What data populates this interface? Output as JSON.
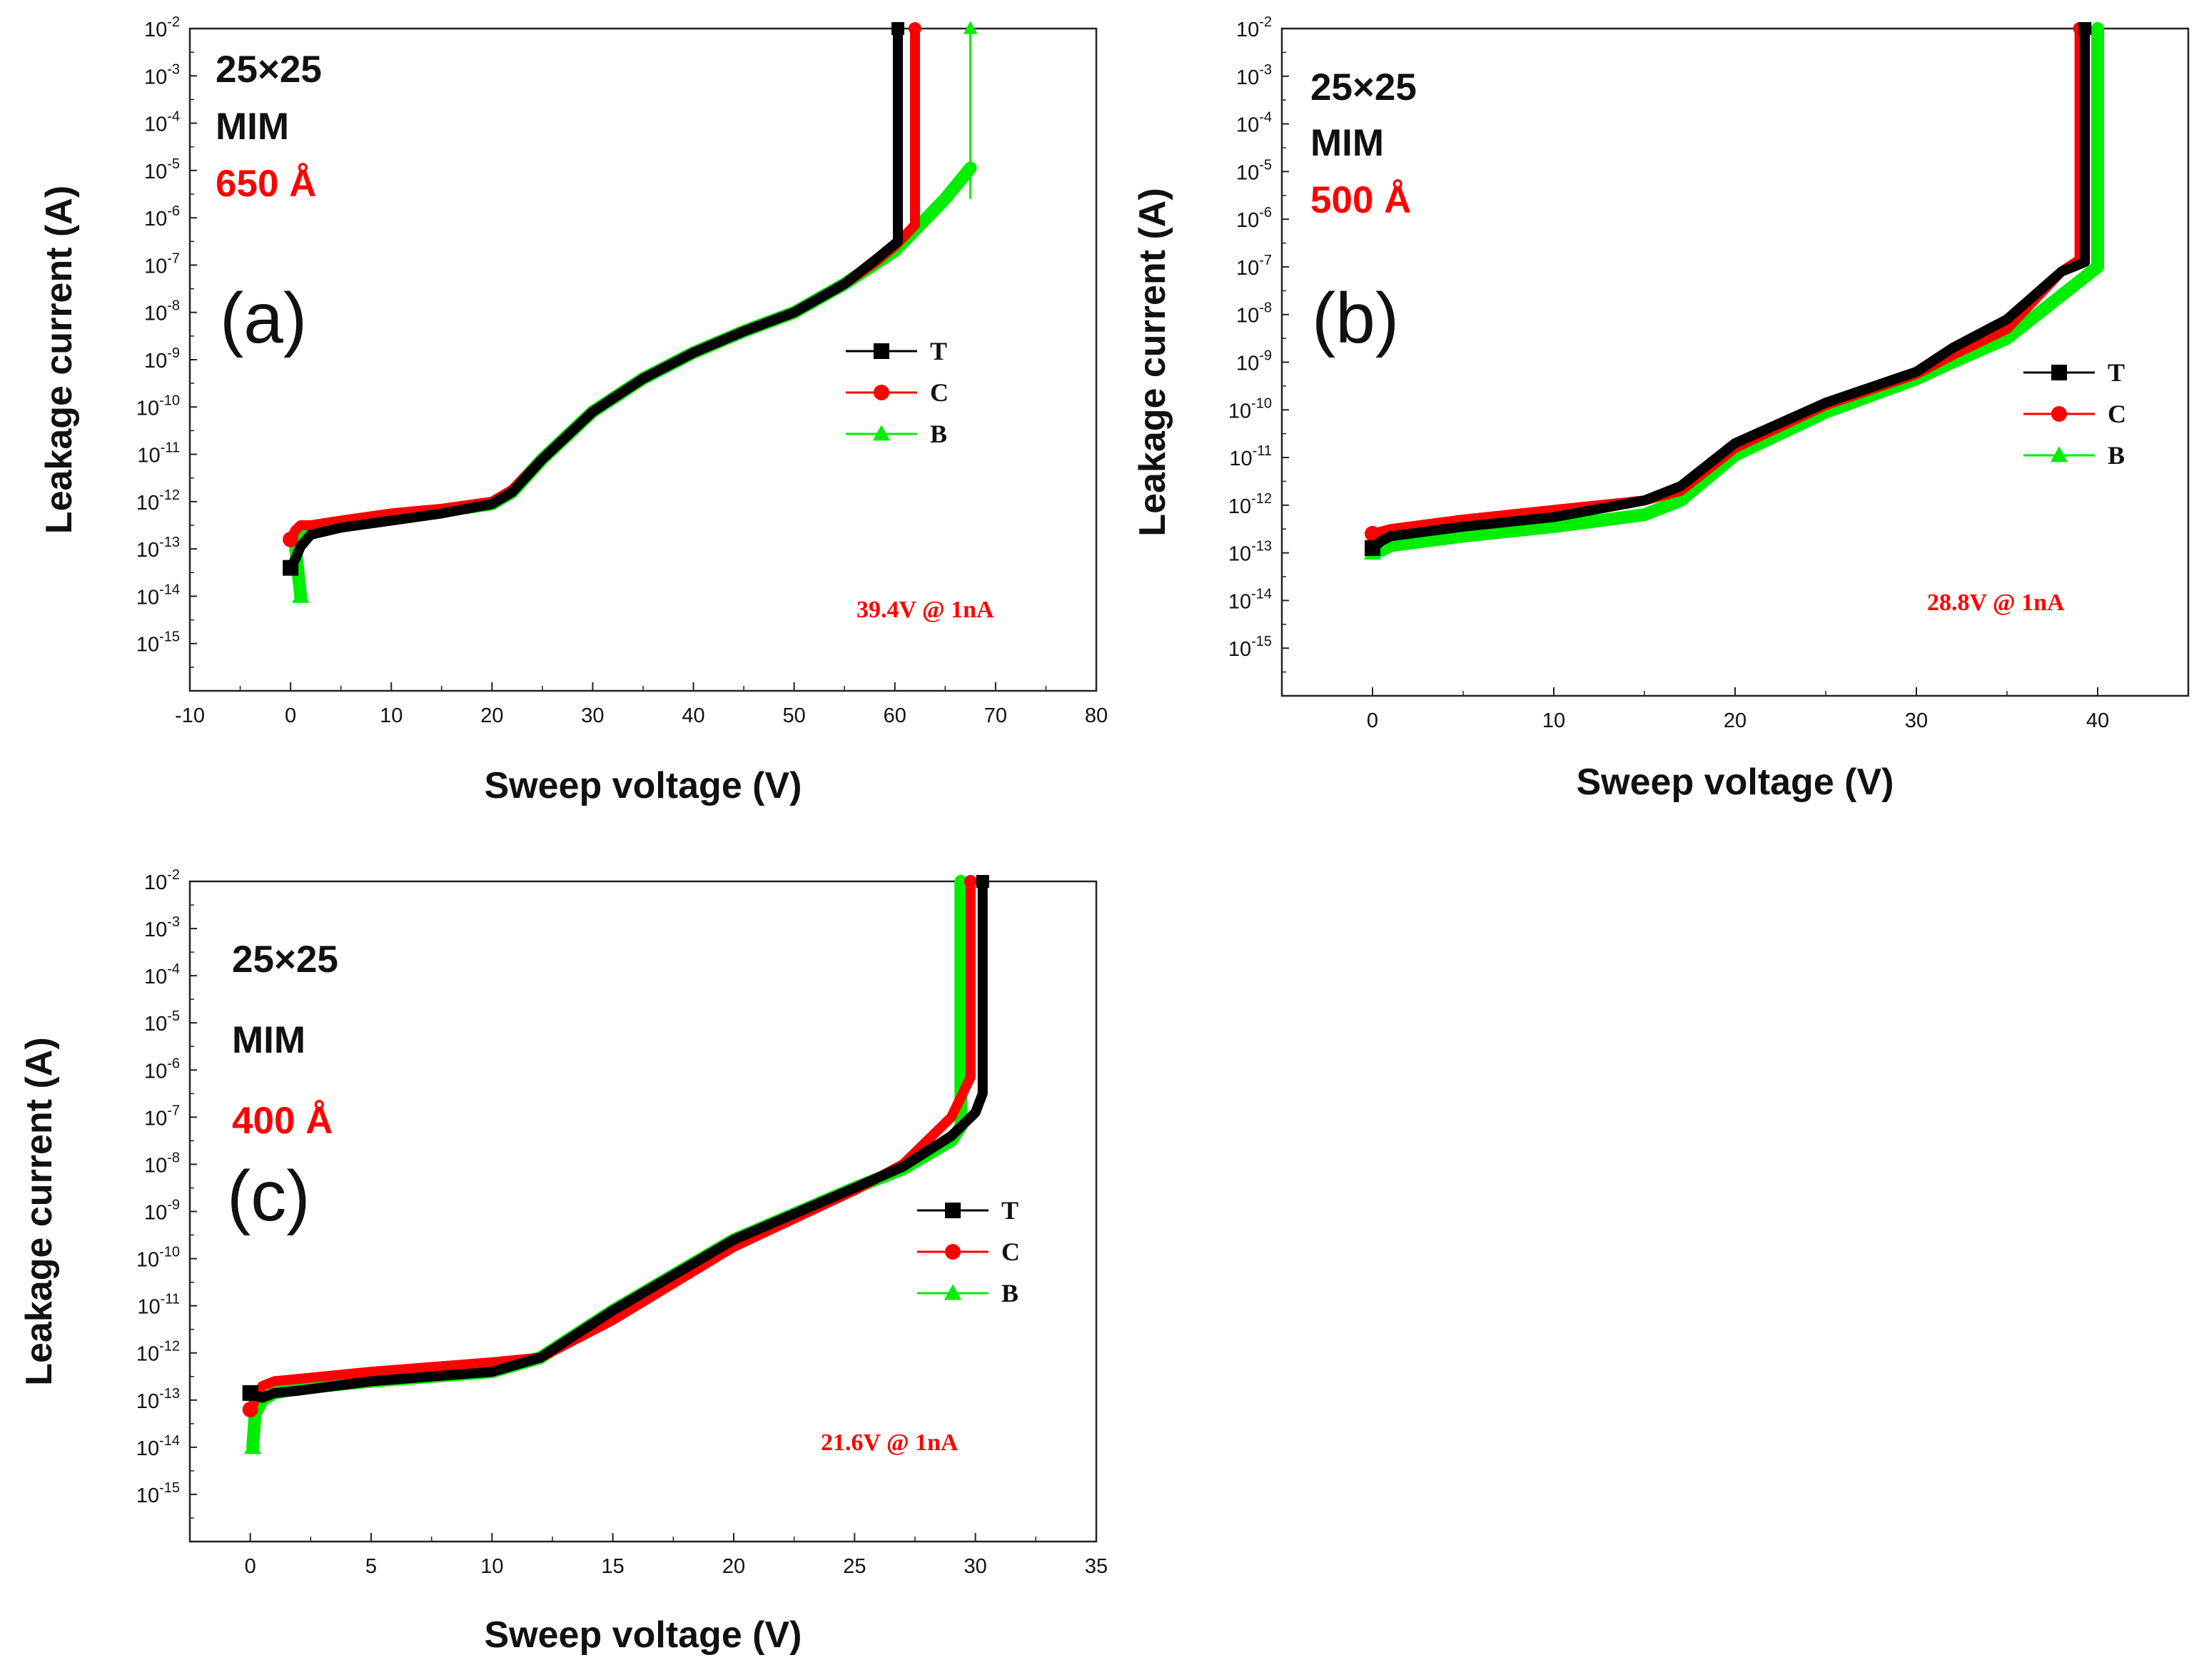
{
  "chart_data": [
    {
      "type": "line",
      "panel_label": "(a)",
      "xlabel": "Sweep voltage (V)",
      "ylabel": "Leakage current (A)",
      "xlim": [
        -10,
        80
      ],
      "xticks": [
        -10,
        0,
        10,
        20,
        30,
        40,
        50,
        60,
        70,
        80
      ],
      "ylim_log10": [
        -16,
        -2
      ],
      "yticks_exp": [
        -2,
        -3,
        -4,
        -5,
        -6,
        -7,
        -8,
        -9,
        -10,
        -11,
        -12,
        -13,
        -14,
        -15
      ],
      "ytick_base": "10",
      "info_lines": [
        "25×25",
        "MIM",
        "650 Å"
      ],
      "annotation": "39.4V @ 1nA",
      "legend": [
        "T",
        "C",
        "B"
      ],
      "series": [
        {
          "name": "T",
          "color": "#000000",
          "marker": "square",
          "x": [
            0,
            0.5,
            1,
            2,
            5,
            10,
            15,
            20,
            22,
            25,
            30,
            35,
            40,
            45,
            50,
            55,
            58,
            60.3,
            60.3
          ],
          "log10_y": [
            -13.4,
            -13.2,
            -12.95,
            -12.7,
            -12.55,
            -12.4,
            -12.25,
            -12.05,
            -11.8,
            -11.1,
            -10.1,
            -9.4,
            -8.85,
            -8.4,
            -8.0,
            -7.4,
            -6.9,
            -6.5,
            -2
          ]
        },
        {
          "name": "C",
          "color": "#ff0000",
          "marker": "circle",
          "x": [
            0,
            0.5,
            1,
            2,
            5,
            10,
            15,
            20,
            22,
            25,
            30,
            35,
            40,
            45,
            50,
            55,
            58,
            60,
            62,
            62
          ],
          "log10_y": [
            -12.8,
            -12.6,
            -12.5,
            -12.5,
            -12.4,
            -12.25,
            -12.15,
            -12.0,
            -11.75,
            -11.1,
            -10.1,
            -9.4,
            -8.85,
            -8.4,
            -8.0,
            -7.4,
            -6.95,
            -6.6,
            -6.15,
            -2
          ]
        },
        {
          "name": "B",
          "color": "#00ee00",
          "marker": "triangle",
          "x": [
            1,
            0.5,
            1,
            2,
            5,
            10,
            15,
            20,
            22,
            25,
            30,
            35,
            40,
            45,
            50,
            55,
            60,
            65,
            67.5
          ],
          "log10_y": [
            -14,
            -13.0,
            -12.75,
            -12.6,
            -12.5,
            -12.35,
            -12.2,
            -12.05,
            -11.8,
            -11.1,
            -10.1,
            -9.4,
            -8.85,
            -8.4,
            -8.0,
            -7.4,
            -6.7,
            -5.6,
            -4.95
          ]
        }
      ]
    },
    {
      "type": "line",
      "panel_label": "(b)",
      "xlabel": "Sweep voltage (V)",
      "ylabel": "Leakage current (A)",
      "xlim": [
        -5,
        45
      ],
      "xticks": [
        0,
        10,
        20,
        30,
        40
      ],
      "ylim_log10": [
        -16,
        -2
      ],
      "yticks_exp": [
        -2,
        -3,
        -4,
        -5,
        -6,
        -7,
        -8,
        -9,
        -10,
        -11,
        -12,
        -13,
        -14,
        -15
      ],
      "ytick_base": "10",
      "info_lines": [
        "25×25",
        "MIM",
        "500 Å"
      ],
      "annotation": "28.8V @ 1nA",
      "legend": [
        "T",
        "C",
        "B"
      ],
      "series": [
        {
          "name": "T",
          "color": "#000000",
          "marker": "square",
          "x": [
            0,
            0.5,
            1,
            5,
            10,
            15,
            17,
            20,
            25,
            30,
            32,
            35,
            38,
            39.3,
            39.3
          ],
          "log10_y": [
            -12.9,
            -12.75,
            -12.65,
            -12.45,
            -12.25,
            -11.9,
            -11.6,
            -10.7,
            -9.85,
            -9.2,
            -8.7,
            -8.1,
            -7.1,
            -6.9,
            -2
          ]
        },
        {
          "name": "C",
          "color": "#ff0000",
          "marker": "circle",
          "x": [
            0,
            0.5,
            1,
            5,
            10,
            15,
            17,
            20,
            25,
            30,
            32,
            35,
            38,
            39,
            39
          ],
          "log10_y": [
            -12.6,
            -12.55,
            -12.5,
            -12.3,
            -12.1,
            -11.9,
            -11.7,
            -10.8,
            -9.9,
            -9.25,
            -8.85,
            -8.3,
            -7.1,
            -6.85,
            -2
          ]
        },
        {
          "name": "B",
          "color": "#00ee00",
          "marker": "triangle",
          "x": [
            0,
            0.5,
            1,
            5,
            10,
            15,
            17,
            20,
            25,
            30,
            32,
            35,
            38,
            40,
            40
          ],
          "log10_y": [
            -13.0,
            -12.95,
            -12.85,
            -12.65,
            -12.45,
            -12.2,
            -11.9,
            -10.95,
            -10.05,
            -9.35,
            -9.0,
            -8.5,
            -7.6,
            -7.0,
            -2
          ]
        }
      ]
    },
    {
      "type": "line",
      "panel_label": "(c)",
      "xlabel": "Sweep voltage (V)",
      "ylabel": "Leakage current (A)",
      "xlim": [
        -2.5,
        35
      ],
      "xticks": [
        0,
        5,
        10,
        15,
        20,
        25,
        30,
        35
      ],
      "ylim_log10": [
        -16,
        -2
      ],
      "yticks_exp": [
        -2,
        -3,
        -4,
        -5,
        -6,
        -7,
        -8,
        -9,
        -10,
        -11,
        -12,
        -13,
        -14,
        -15
      ],
      "ytick_base": "10",
      "info_lines": [
        "25×25",
        "MIM",
        "400 Å"
      ],
      "annotation": "21.6V @ 1nA",
      "legend": [
        "T",
        "C",
        "B"
      ],
      "series": [
        {
          "name": "T",
          "color": "#000000",
          "marker": "square",
          "x": [
            0,
            0.2,
            0.5,
            1,
            2,
            5,
            10,
            12,
            15,
            20,
            25,
            27,
            29,
            30,
            30.3,
            30.3
          ],
          "log10_y": [
            -12.85,
            -12.9,
            -12.95,
            -12.85,
            -12.8,
            -12.6,
            -12.4,
            -12.1,
            -11.1,
            -9.6,
            -8.5,
            -8.05,
            -7.4,
            -6.9,
            -6.5,
            -2
          ]
        },
        {
          "name": "C",
          "color": "#ff0000",
          "marker": "circle",
          "x": [
            0,
            0.5,
            1,
            2,
            5,
            10,
            12,
            15,
            20,
            25,
            27,
            29,
            29.8,
            29.8
          ],
          "log10_y": [
            -13.2,
            -12.7,
            -12.6,
            -12.55,
            -12.4,
            -12.2,
            -12.1,
            -11.3,
            -9.75,
            -8.55,
            -8.0,
            -7.0,
            -6.15,
            -2
          ]
        },
        {
          "name": "B",
          "color": "#00ee00",
          "marker": "triangle",
          "x": [
            0.1,
            0.2,
            0.5,
            1,
            2,
            5,
            10,
            12,
            15,
            20,
            25,
            27,
            29,
            29.4,
            29.4
          ],
          "log10_y": [
            -14,
            -13.3,
            -13.0,
            -12.85,
            -12.75,
            -12.6,
            -12.4,
            -12.1,
            -11.1,
            -9.6,
            -8.5,
            -8.1,
            -7.5,
            -7.2,
            -2
          ]
        }
      ]
    }
  ]
}
